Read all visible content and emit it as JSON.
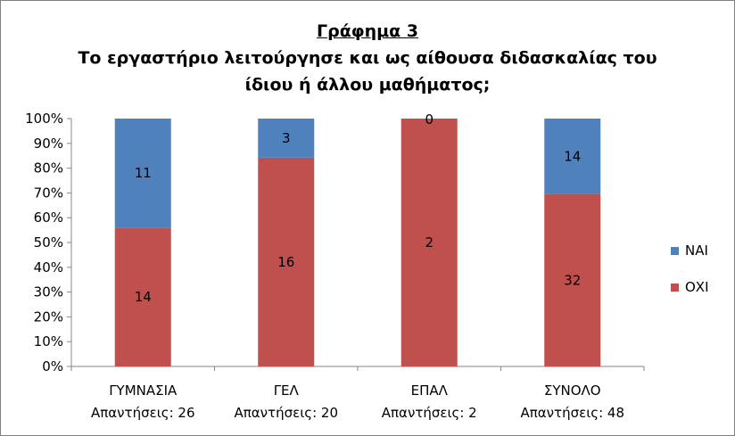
{
  "chart_data": {
    "type": "bar",
    "stacked": "percent",
    "title": "Γράφημα 3",
    "subtitle_line1": "Το εργαστήριο λειτούργησε και ως αίθουσα διδασκαλίας του",
    "subtitle_line2": "ίδιου ή άλλου μαθήματος;",
    "categories": [
      "ΓΥΜΝΑΣΙΑ",
      "ΓΕΛ",
      "ΕΠΑΛ",
      "ΣΥΝΟΛΟ"
    ],
    "category_sublabels": [
      "Απαντήσεις: 26",
      "Απαντήσεις: 20",
      "Απαντήσεις: 2",
      "Απαντήσεις: 48"
    ],
    "series": [
      {
        "name": "ΟΧΙ",
        "values": [
          14,
          16,
          2,
          32
        ],
        "color": "#c0504d"
      },
      {
        "name": "ΝΑΙ",
        "values": [
          11,
          3,
          0,
          14
        ],
        "color": "#4f81bd"
      }
    ],
    "y_ticks": [
      "0%",
      "10%",
      "20%",
      "30%",
      "40%",
      "50%",
      "60%",
      "70%",
      "80%",
      "90%",
      "100%"
    ],
    "ylim": [
      0,
      100
    ],
    "legend_position": "right"
  }
}
